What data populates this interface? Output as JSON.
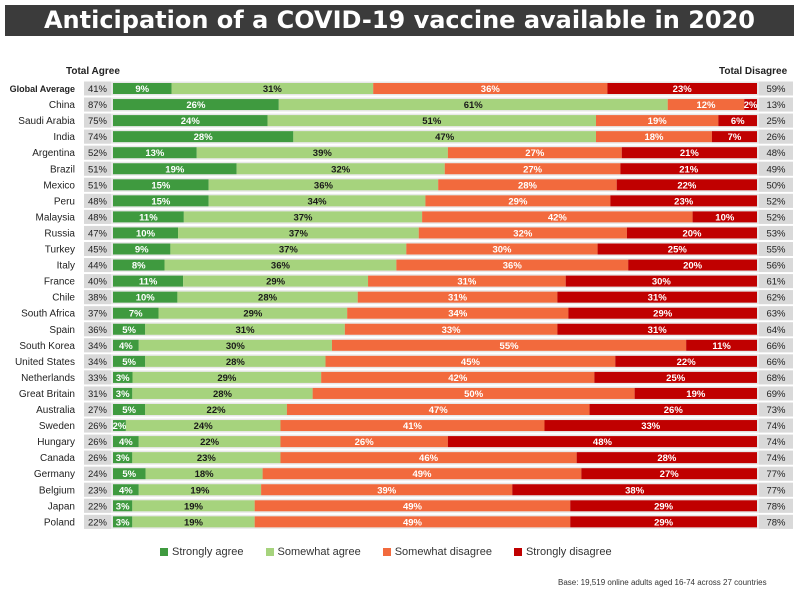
{
  "title": "Anticipation of a COVID-19 vaccine available in 2020",
  "header_left": "Total Agree",
  "header_right": "Total Disagree",
  "footnote": "Base: 19,519 online adults aged 16-74 across 27 countries",
  "colors": {
    "strongly_agree": "#3f9a3f",
    "somewhat_agree": "#a6d37d",
    "somewhat_disagree": "#f26a3d",
    "strongly_disagree": "#c00000",
    "total_cell": "#d9d9d9",
    "row_bg": "#e8e8e8"
  },
  "chart_data": {
    "type": "bar",
    "orientation": "horizontal",
    "stacked": true,
    "title": "Anticipation of a COVID-19 vaccine available in 2020",
    "categories": [
      "Global Average",
      "China",
      "Saudi Arabia",
      "India",
      "Argentina",
      "Brazil",
      "Mexico",
      "Peru",
      "Malaysia",
      "Russia",
      "Turkey",
      "Italy",
      "France",
      "Chile",
      "South Africa",
      "Spain",
      "South Korea",
      "United States",
      "Netherlands",
      "Great Britain",
      "Australia",
      "Sweden",
      "Hungary",
      "Canada",
      "Germany",
      "Belgium",
      "Japan",
      "Poland"
    ],
    "total_agree": [
      41,
      87,
      75,
      74,
      52,
      51,
      51,
      48,
      48,
      47,
      45,
      44,
      40,
      38,
      37,
      36,
      34,
      34,
      33,
      31,
      27,
      26,
      26,
      26,
      24,
      23,
      22,
      22
    ],
    "total_disagree": [
      59,
      13,
      25,
      26,
      48,
      49,
      50,
      52,
      52,
      53,
      55,
      56,
      61,
      62,
      63,
      64,
      66,
      66,
      68,
      69,
      73,
      74,
      74,
      74,
      77,
      77,
      78,
      78
    ],
    "series": [
      {
        "name": "Strongly agree",
        "values": [
          9,
          26,
          24,
          28,
          13,
          19,
          15,
          15,
          11,
          10,
          9,
          8,
          11,
          10,
          7,
          5,
          4,
          5,
          3,
          3,
          5,
          2,
          4,
          3,
          5,
          4,
          3,
          3
        ]
      },
      {
        "name": "Somewhat agree",
        "values": [
          31,
          61,
          51,
          47,
          39,
          32,
          36,
          34,
          37,
          37,
          37,
          36,
          29,
          28,
          29,
          31,
          30,
          28,
          29,
          28,
          22,
          24,
          22,
          23,
          18,
          19,
          19,
          19
        ]
      },
      {
        "name": "Somewhat disagree",
        "values": [
          36,
          12,
          19,
          18,
          27,
          27,
          28,
          29,
          42,
          32,
          30,
          36,
          31,
          31,
          34,
          33,
          55,
          45,
          42,
          50,
          47,
          41,
          26,
          46,
          49,
          39,
          49,
          49
        ]
      },
      {
        "name": "Strongly disagree",
        "values": [
          23,
          2,
          6,
          7,
          21,
          21,
          22,
          23,
          10,
          20,
          25,
          20,
          30,
          31,
          29,
          31,
          11,
          22,
          25,
          19,
          26,
          33,
          48,
          28,
          27,
          38,
          29,
          29
        ]
      }
    ],
    "value_format": "percent",
    "legend_position": "bottom"
  }
}
